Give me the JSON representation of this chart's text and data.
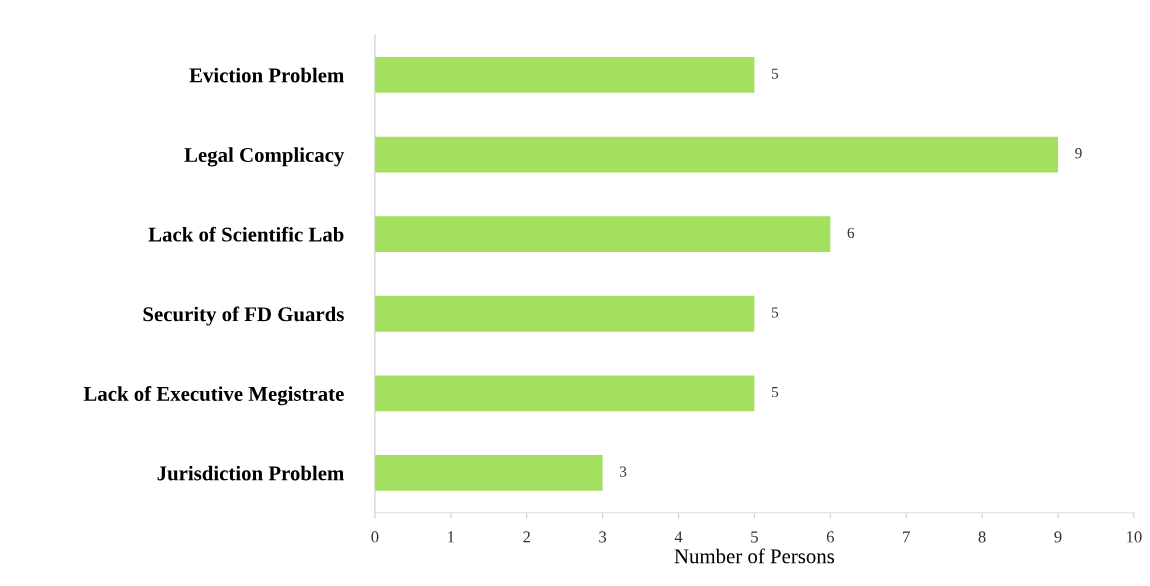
{
  "chart_data": {
    "type": "bar",
    "orientation": "horizontal",
    "xlabel": "Number of Persons",
    "categories": [
      "Eviction Problem",
      "Legal Complicacy",
      "Lack of Scientific Lab",
      "Security of FD Guards",
      "Lack of Executive Megistrate",
      "Jurisdiction Problem"
    ],
    "values": [
      5,
      9,
      6,
      5,
      5,
      3
    ],
    "color": "#a3e05f",
    "xlim": [
      0,
      10
    ],
    "xticks": [
      0,
      1,
      2,
      3,
      4,
      5,
      6,
      7,
      8,
      9,
      10
    ],
    "data_labels": true,
    "grid": false,
    "legend": false
  }
}
